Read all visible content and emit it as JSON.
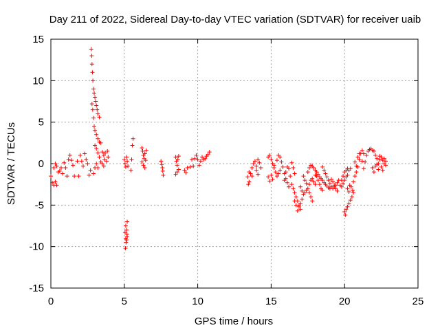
{
  "chart_data": {
    "type": "scatter",
    "title": "Day 211 of 2022, Sidereal Day-to-day VTEC variation (SDTVAR) for receiver uaib",
    "xlabel": "GPS time / hours",
    "ylabel": "SDTVAR / TECUs",
    "xlim": [
      0,
      25
    ],
    "ylim": [
      -15,
      15
    ],
    "xticks": [
      0,
      5,
      10,
      15,
      20,
      25
    ],
    "yticks": [
      -15,
      -10,
      -5,
      0,
      5,
      10,
      15
    ],
    "xtick_labels": [
      "0",
      "5",
      "10",
      "15",
      "20",
      "25"
    ],
    "ytick_labels": [
      "-15",
      "-10",
      "-5",
      "0",
      "5",
      "10",
      "15"
    ],
    "grid": true,
    "marker": "+",
    "series": [
      {
        "name": "SDTVAR",
        "color": "#ff0000",
        "points": [
          [
            0.0,
            -1.5
          ],
          [
            0.1,
            -2.3
          ],
          [
            0.2,
            -2.6
          ],
          [
            0.3,
            -2.2
          ],
          [
            0.4,
            -2.6
          ],
          [
            0.2,
            -0.5
          ],
          [
            0.3,
            0.0
          ],
          [
            0.4,
            -0.3
          ],
          [
            0.5,
            -1.0
          ],
          [
            0.6,
            -0.9
          ],
          [
            0.7,
            -0.5
          ],
          [
            0.8,
            -1.2
          ],
          [
            0.9,
            0.1
          ],
          [
            1.0,
            -0.5
          ],
          [
            1.1,
            -1.5
          ],
          [
            1.2,
            0.5
          ],
          [
            1.3,
            1.0
          ],
          [
            1.4,
            0.4
          ],
          [
            1.5,
            -0.2
          ],
          [
            1.6,
            -1.5
          ],
          [
            1.8,
            0.3
          ],
          [
            1.9,
            -1.5
          ],
          [
            2.0,
            1.0
          ],
          [
            2.1,
            0.3
          ],
          [
            2.2,
            -0.3
          ],
          [
            2.3,
            1.2
          ],
          [
            2.4,
            0.5
          ],
          [
            2.5,
            0.0
          ],
          [
            2.6,
            -1.4
          ],
          [
            2.7,
            -0.8
          ],
          [
            2.75,
            13.8
          ],
          [
            2.78,
            13.0
          ],
          [
            2.8,
            12.0
          ],
          [
            2.83,
            11.0
          ],
          [
            2.86,
            10.0
          ],
          [
            2.9,
            9.0
          ],
          [
            2.95,
            8.5
          ],
          [
            3.0,
            8.0
          ],
          [
            3.05,
            7.5
          ],
          [
            3.1,
            7.0
          ],
          [
            3.15,
            6.5
          ],
          [
            3.2,
            6.0
          ],
          [
            3.3,
            5.6
          ],
          [
            2.8,
            7.2
          ],
          [
            2.85,
            6.5
          ],
          [
            2.9,
            5.5
          ],
          [
            2.95,
            4.5
          ],
          [
            3.0,
            4.0
          ],
          [
            3.1,
            3.5
          ],
          [
            3.2,
            3.0
          ],
          [
            3.3,
            2.6
          ],
          [
            3.4,
            2.5
          ],
          [
            3.0,
            2.2
          ],
          [
            3.1,
            1.8
          ],
          [
            3.2,
            1.3
          ],
          [
            3.3,
            0.8
          ],
          [
            3.5,
            1.4
          ],
          [
            3.6,
            1.0
          ],
          [
            3.7,
            1.3
          ],
          [
            3.8,
            0.3
          ],
          [
            3.4,
            0.2
          ],
          [
            3.5,
            0.0
          ],
          [
            3.6,
            -0.3
          ],
          [
            3.1,
            0.0
          ],
          [
            3.2,
            -0.5
          ],
          [
            2.9,
            -1.2
          ],
          [
            3.0,
            -0.5
          ],
          [
            3.9,
            0.8
          ],
          [
            3.85,
            1.5
          ],
          [
            3.65,
            0.5
          ],
          [
            5.0,
            0.5
          ],
          [
            5.05,
            0.0
          ],
          [
            5.1,
            -0.4
          ],
          [
            5.15,
            0.8
          ],
          [
            5.2,
            0.3
          ],
          [
            5.25,
            -0.3
          ],
          [
            5.1,
            -7.5
          ],
          [
            5.15,
            -8.0
          ],
          [
            5.2,
            -7.0
          ],
          [
            5.18,
            -8.5
          ],
          [
            5.1,
            -9.0
          ],
          [
            5.12,
            -9.5
          ],
          [
            5.08,
            -10.2
          ],
          [
            5.15,
            -9.2
          ],
          [
            5.2,
            -8.8
          ],
          [
            5.05,
            -8.3
          ],
          [
            5.6,
            3.0
          ],
          [
            5.55,
            2.2
          ],
          [
            5.5,
            0.5
          ],
          [
            5.45,
            -0.8
          ],
          [
            6.2,
            1.9
          ],
          [
            6.25,
            1.5
          ],
          [
            6.3,
            1.0
          ],
          [
            6.35,
            0.6
          ],
          [
            6.2,
            0.2
          ],
          [
            6.3,
            -0.2
          ],
          [
            6.4,
            -0.5
          ],
          [
            6.45,
            0.4
          ],
          [
            6.4,
            1.2
          ],
          [
            6.5,
            1.6
          ],
          [
            7.5,
            0.3
          ],
          [
            7.55,
            -0.1
          ],
          [
            7.6,
            -0.5
          ],
          [
            7.62,
            -0.9
          ],
          [
            7.65,
            -1.4
          ],
          [
            8.5,
            0.8
          ],
          [
            8.55,
            0.3
          ],
          [
            8.6,
            -0.2
          ],
          [
            8.65,
            0.5
          ],
          [
            8.7,
            0.9
          ],
          [
            8.5,
            -1.3
          ],
          [
            8.6,
            -1.0
          ],
          [
            8.7,
            -0.7
          ],
          [
            9.1,
            -0.8
          ],
          [
            9.2,
            -1.1
          ],
          [
            9.3,
            -0.5
          ],
          [
            9.5,
            -0.4
          ],
          [
            9.6,
            0.5
          ],
          [
            9.7,
            -0.3
          ],
          [
            9.8,
            0.6
          ],
          [
            9.9,
            1.0
          ],
          [
            10.0,
            0.5
          ],
          [
            10.1,
            -0.2
          ],
          [
            10.2,
            0.3
          ],
          [
            10.3,
            0.8
          ],
          [
            10.4,
            0.5
          ],
          [
            10.5,
            0.6
          ],
          [
            10.6,
            0.9
          ],
          [
            10.7,
            1.1
          ],
          [
            10.8,
            1.4
          ],
          [
            13.4,
            -1.6
          ],
          [
            13.45,
            -2.5
          ],
          [
            13.5,
            -2.2
          ],
          [
            13.6,
            -1.2
          ],
          [
            13.7,
            -0.5
          ],
          [
            13.8,
            0.0
          ],
          [
            13.9,
            0.3
          ],
          [
            14.0,
            -0.8
          ],
          [
            14.1,
            -1.3
          ],
          [
            14.2,
            0.1
          ],
          [
            13.5,
            -1.0
          ],
          [
            13.7,
            -1.5
          ],
          [
            14.0,
            -0.3
          ],
          [
            14.1,
            0.5
          ],
          [
            14.3,
            -0.5
          ],
          [
            14.8,
            0.8
          ],
          [
            14.9,
            1.0
          ],
          [
            15.0,
            0.5
          ],
          [
            15.1,
            0.0
          ],
          [
            15.2,
            -0.5
          ],
          [
            15.3,
            -1.0
          ],
          [
            15.4,
            -1.5
          ],
          [
            15.5,
            -1.2
          ],
          [
            15.6,
            -0.8
          ],
          [
            15.0,
            -1.4
          ],
          [
            14.8,
            -1.6
          ],
          [
            14.9,
            -2.1
          ],
          [
            15.1,
            -1.9
          ],
          [
            15.2,
            -0.2
          ],
          [
            15.4,
            0.4
          ],
          [
            15.5,
            1.0
          ],
          [
            15.6,
            0.8
          ],
          [
            15.7,
            0.2
          ],
          [
            15.8,
            -0.4
          ],
          [
            15.9,
            -1.2
          ],
          [
            16.0,
            -1.8
          ],
          [
            16.1,
            -2.3
          ],
          [
            16.2,
            -2.8
          ],
          [
            15.9,
            -2.0
          ],
          [
            16.0,
            -1.0
          ],
          [
            16.1,
            -0.4
          ],
          [
            16.2,
            -0.6
          ],
          [
            16.3,
            -1.5
          ],
          [
            16.4,
            -2.5
          ],
          [
            16.5,
            -3.0
          ],
          [
            16.6,
            -3.5
          ],
          [
            16.7,
            -4.0
          ],
          [
            16.8,
            -4.5
          ],
          [
            16.9,
            -5.0
          ],
          [
            17.0,
            -5.5
          ],
          [
            16.4,
            0.1
          ],
          [
            16.5,
            -0.5
          ],
          [
            16.6,
            -1.2
          ],
          [
            16.6,
            -4.5
          ],
          [
            16.7,
            -5.0
          ],
          [
            16.8,
            -5.7
          ],
          [
            16.9,
            -5.2
          ],
          [
            17.0,
            -4.8
          ],
          [
            17.1,
            -4.3
          ],
          [
            17.0,
            -2.8
          ],
          [
            17.1,
            -3.3
          ],
          [
            17.2,
            -3.7
          ],
          [
            17.3,
            -3.5
          ],
          [
            17.4,
            -3.2
          ],
          [
            17.2,
            -1.5
          ],
          [
            17.3,
            -2.0
          ],
          [
            17.4,
            -2.4
          ],
          [
            17.5,
            -3.0
          ],
          [
            17.6,
            -3.5
          ],
          [
            17.7,
            -4.0
          ],
          [
            17.8,
            -4.5
          ],
          [
            17.6,
            -2.5
          ],
          [
            17.7,
            -2.0
          ],
          [
            17.8,
            -1.8
          ],
          [
            17.9,
            -2.2
          ],
          [
            18.0,
            -2.5
          ],
          [
            17.5,
            -1.0
          ],
          [
            17.6,
            -0.5
          ],
          [
            17.7,
            -0.2
          ],
          [
            17.8,
            -0.3
          ],
          [
            17.9,
            -0.5
          ],
          [
            18.0,
            -0.8
          ],
          [
            18.1,
            -1.0
          ],
          [
            18.2,
            -1.3
          ],
          [
            18.3,
            -1.6
          ],
          [
            18.4,
            -1.8
          ],
          [
            18.5,
            -2.0
          ],
          [
            18.6,
            -2.3
          ],
          [
            18.7,
            -2.5
          ],
          [
            18.8,
            -2.7
          ],
          [
            18.9,
            -2.9
          ],
          [
            19.0,
            -3.0
          ],
          [
            18.4,
            -3.0
          ],
          [
            18.5,
            -3.2
          ],
          [
            18.3,
            -2.5
          ],
          [
            18.2,
            -2.0
          ],
          [
            18.1,
            -1.5
          ],
          [
            18.0,
            -1.4
          ],
          [
            18.5,
            -0.4
          ],
          [
            18.6,
            -0.8
          ],
          [
            18.7,
            -1.2
          ],
          [
            18.8,
            -1.6
          ],
          [
            18.9,
            -2.0
          ],
          [
            19.0,
            -2.4
          ],
          [
            19.1,
            -2.8
          ],
          [
            19.2,
            -3.0
          ],
          [
            19.3,
            -2.8
          ],
          [
            19.4,
            -2.6
          ],
          [
            19.5,
            -2.3
          ],
          [
            19.6,
            -2.0
          ],
          [
            19.1,
            -1.9
          ],
          [
            19.2,
            -2.2
          ],
          [
            19.3,
            -2.6
          ],
          [
            19.4,
            -3.0
          ],
          [
            19.5,
            -3.3
          ],
          [
            19.7,
            -2.6
          ],
          [
            19.8,
            -2.0
          ],
          [
            19.9,
            -1.5
          ],
          [
            20.0,
            -1.0
          ],
          [
            20.1,
            -0.8
          ],
          [
            20.2,
            -0.6
          ],
          [
            20.3,
            -0.8
          ],
          [
            20.4,
            -0.6
          ],
          [
            19.8,
            -2.8
          ],
          [
            19.9,
            -2.4
          ],
          [
            20.0,
            -2.0
          ],
          [
            20.1,
            -1.6
          ],
          [
            20.2,
            -1.4
          ],
          [
            20.0,
            -5.8
          ],
          [
            20.05,
            -6.2
          ],
          [
            20.1,
            -5.5
          ],
          [
            20.2,
            -5.2
          ],
          [
            20.3,
            -4.8
          ],
          [
            20.4,
            -4.4
          ],
          [
            20.5,
            -4.0
          ],
          [
            20.6,
            -3.5
          ],
          [
            20.2,
            -3.0
          ],
          [
            20.3,
            -3.4
          ],
          [
            20.35,
            -2.6
          ],
          [
            20.45,
            -2.8
          ],
          [
            20.55,
            -3.2
          ],
          [
            20.6,
            -2.2
          ],
          [
            20.7,
            -1.5
          ],
          [
            20.8,
            -1.0
          ],
          [
            20.9,
            -0.4
          ],
          [
            21.0,
            0.5
          ],
          [
            21.1,
            1.2
          ],
          [
            21.2,
            1.6
          ],
          [
            21.3,
            1.2
          ],
          [
            20.7,
            0.2
          ],
          [
            20.8,
            -0.3
          ],
          [
            20.9,
            0.8
          ],
          [
            21.0,
            1.2
          ],
          [
            21.2,
            0.3
          ],
          [
            21.3,
            -0.6
          ],
          [
            21.4,
            0.2
          ],
          [
            21.5,
            1.0
          ],
          [
            21.6,
            1.5
          ],
          [
            21.7,
            1.7
          ],
          [
            21.8,
            1.8
          ],
          [
            21.9,
            1.6
          ],
          [
            22.0,
            1.5
          ],
          [
            22.1,
            1.0
          ],
          [
            22.2,
            0.6
          ],
          [
            21.9,
            -0.5
          ],
          [
            22.0,
            -1.0
          ],
          [
            22.1,
            -0.3
          ],
          [
            22.2,
            -0.1
          ],
          [
            22.3,
            0.0
          ],
          [
            22.4,
            0.5
          ],
          [
            22.5,
            0.8
          ],
          [
            22.6,
            0.4
          ],
          [
            22.7,
            0.0
          ],
          [
            22.8,
            0.3
          ],
          [
            22.5,
            -0.4
          ],
          [
            22.6,
            -0.8
          ],
          [
            22.4,
            0.9
          ],
          [
            22.3,
            -0.7
          ],
          [
            22.7,
            0.6
          ],
          [
            22.8,
            -0.2
          ]
        ]
      }
    ]
  }
}
